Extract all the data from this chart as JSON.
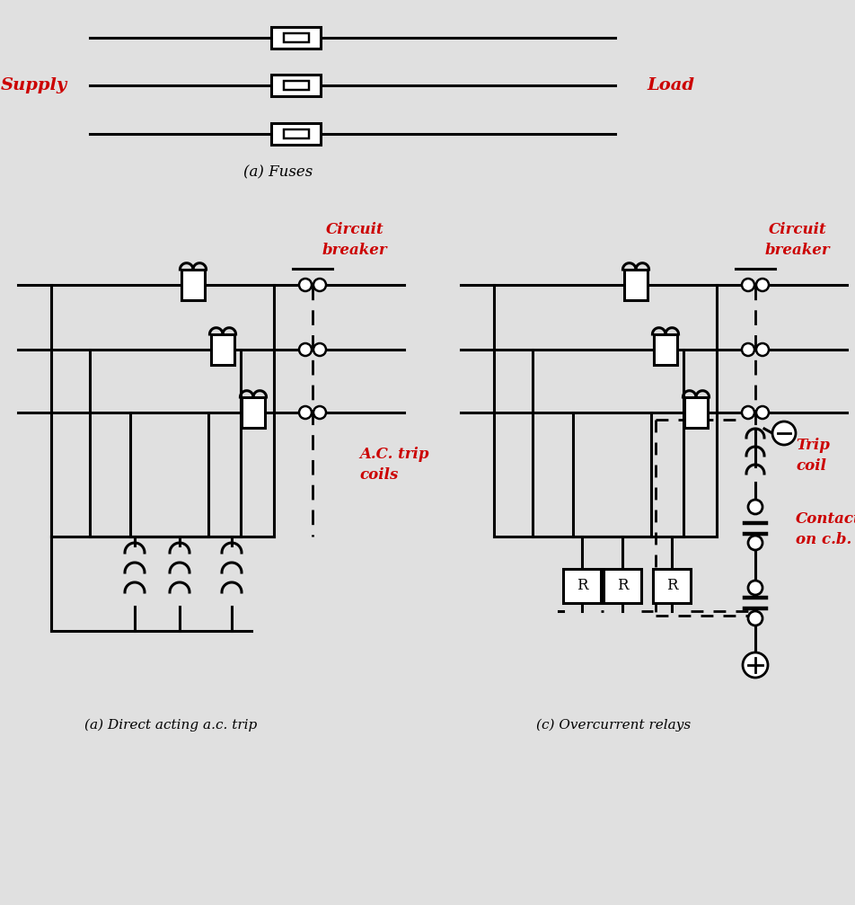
{
  "bg_color": "#e0e0e0",
  "line_color": "#000000",
  "red_color": "#cc0000",
  "lw": 2.0,
  "lw_thick": 2.2,
  "supply_label": "Supply",
  "load_label": "Load",
  "fuses_label": "(a) Fuses",
  "direct_label": "(a) Direct acting a.c. trip",
  "relay_label": "(c) Overcurrent relays",
  "cb_label": "Circuit\nbreaker",
  "ac_trip_label": "A.C. trip\ncoils",
  "trip_coil_label": "Trip\ncoil",
  "contact_cb_label": "Contact\non c.b."
}
